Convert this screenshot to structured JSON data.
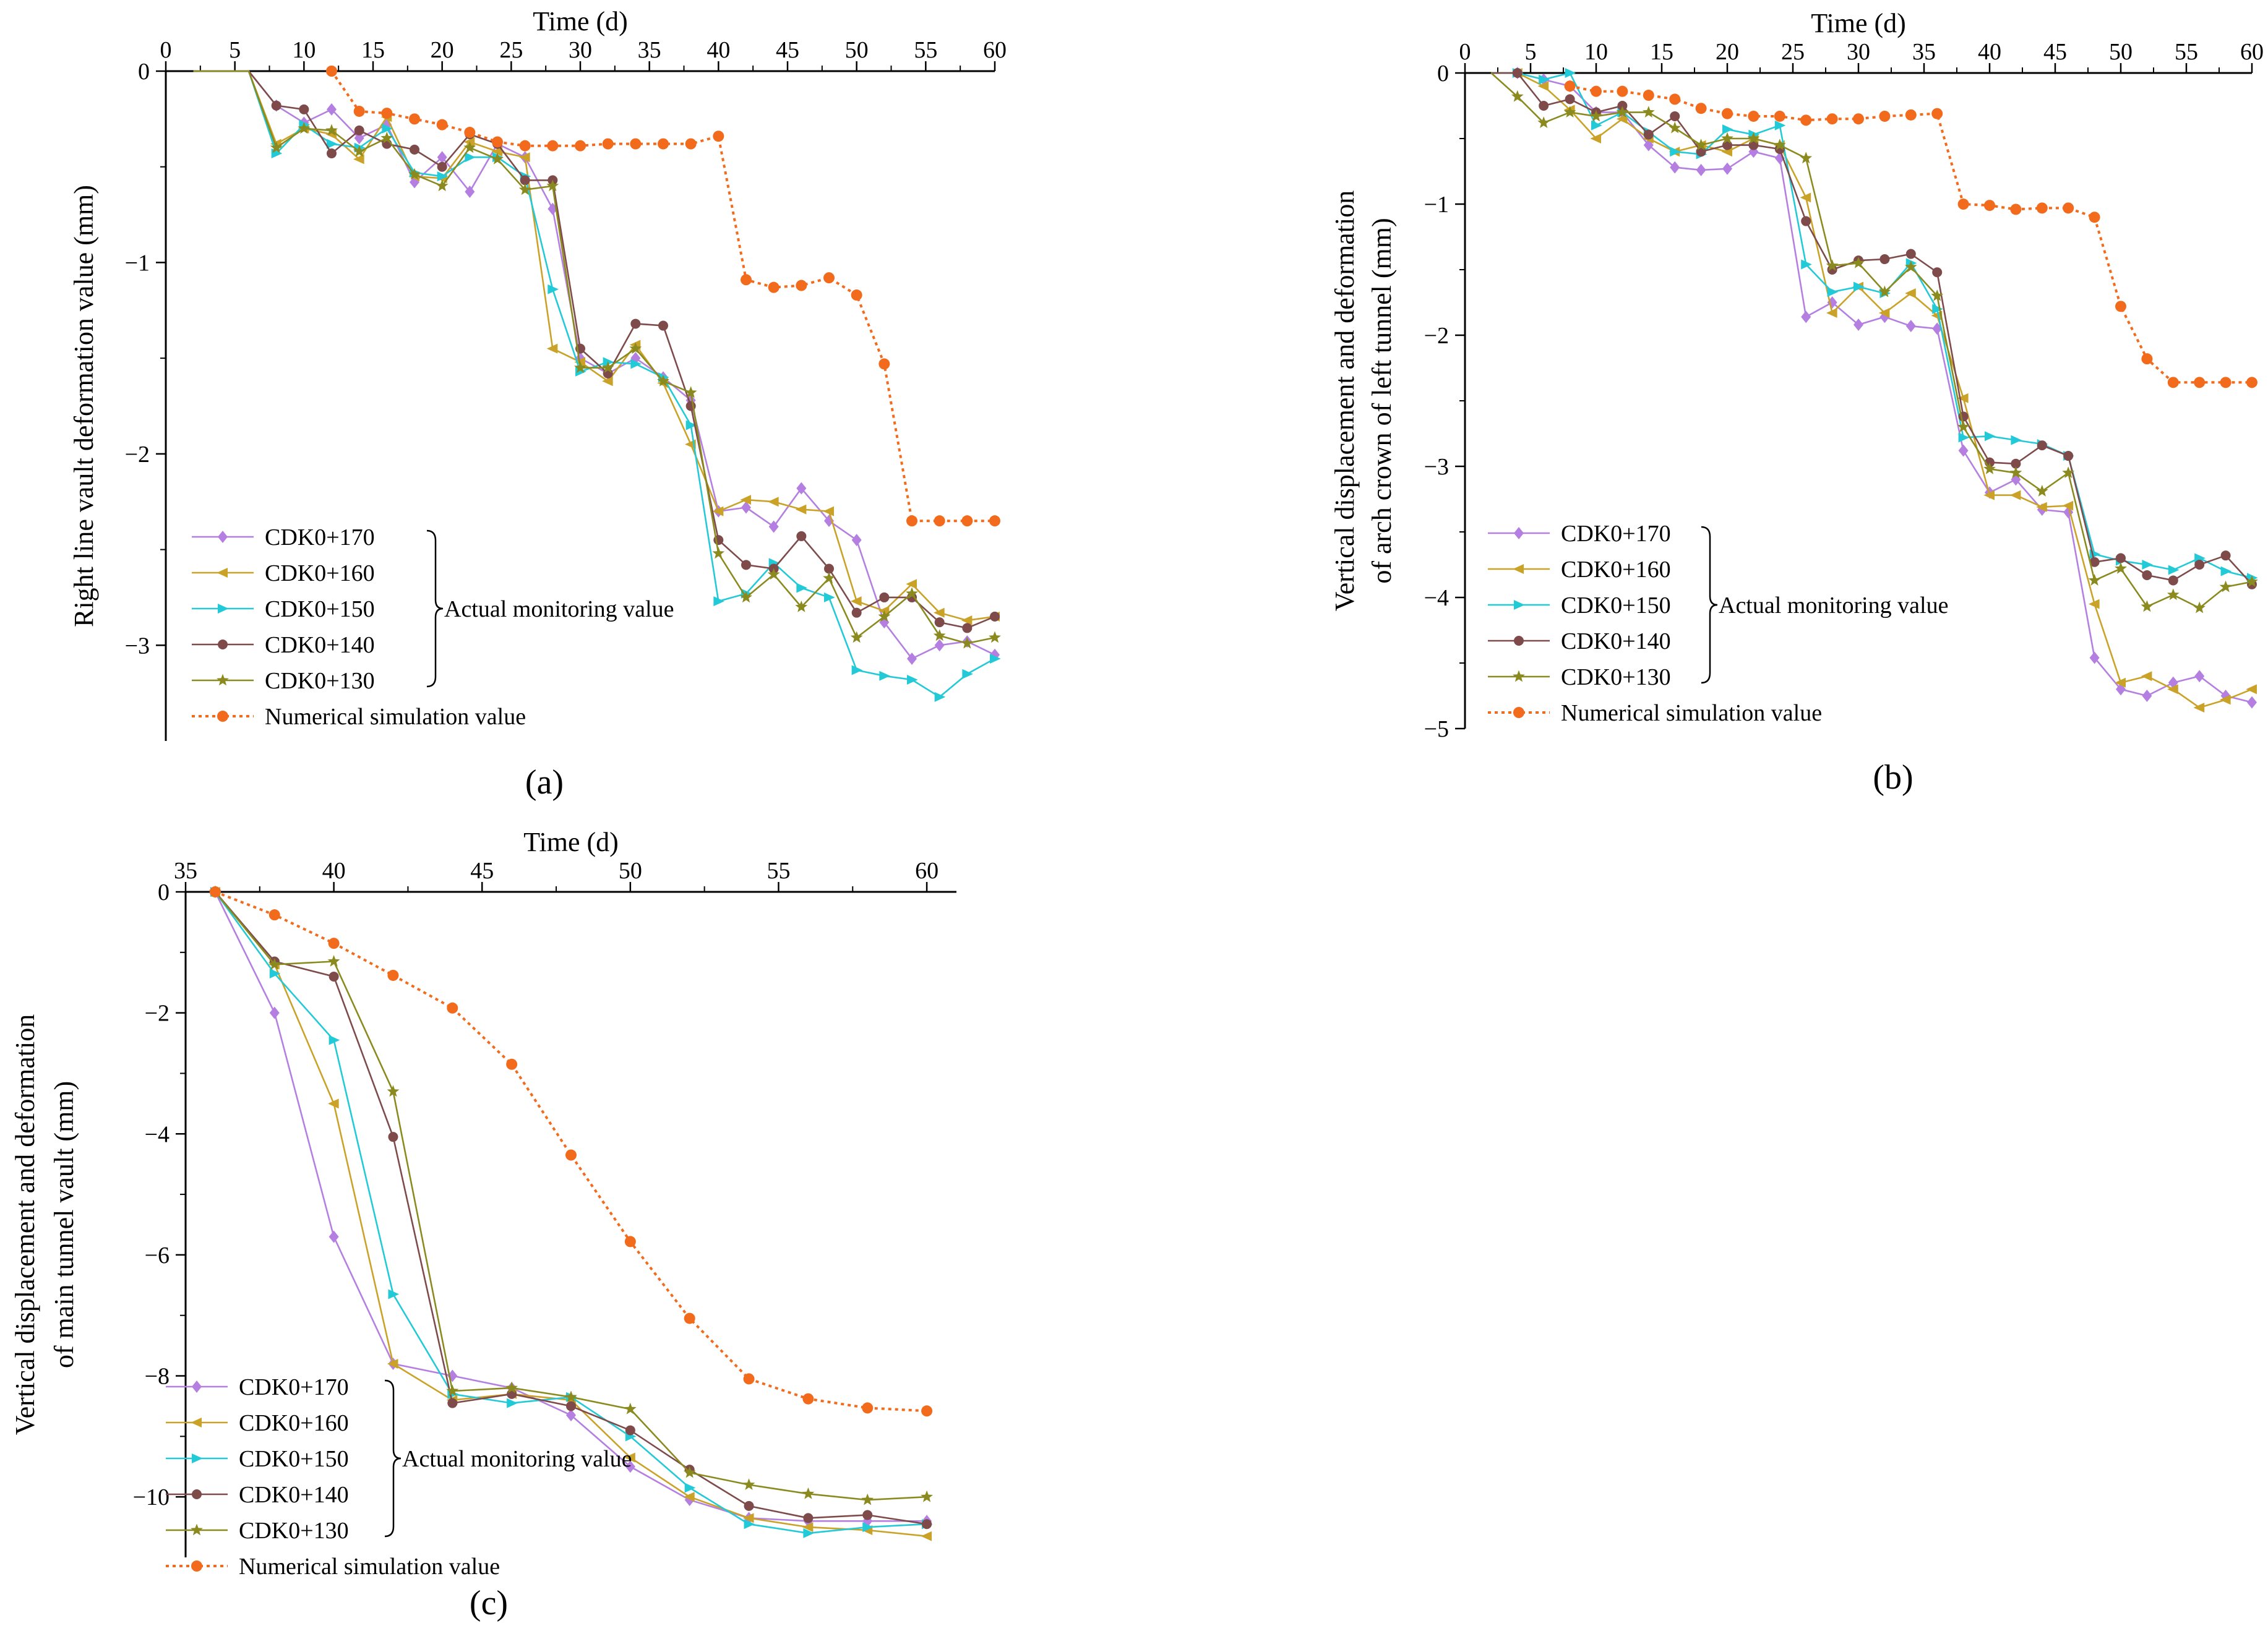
{
  "chart_data": [
    {
      "id": "a",
      "type": "line",
      "panel_label": "(a)",
      "xlabel": "Time (d)",
      "ylabel": "Right line vault deformation value (mm)",
      "xlim": [
        0,
        60
      ],
      "ylim": [
        -3.5,
        0
      ],
      "xticks": [
        0,
        5,
        10,
        15,
        20,
        25,
        30,
        35,
        40,
        45,
        50,
        55,
        60
      ],
      "yticks": [
        0,
        -1,
        -2,
        -3
      ],
      "ytick_labels": [
        "0",
        "−1",
        "−2",
        "−3"
      ],
      "x": [
        8,
        10,
        12,
        14,
        16,
        18,
        20,
        22,
        24,
        26,
        28,
        30,
        32,
        34,
        36,
        38,
        40,
        42,
        44,
        46,
        48,
        50,
        52,
        54,
        56,
        58,
        60
      ],
      "lead_in": [
        [
          2,
          0
        ],
        [
          6,
          0
        ]
      ],
      "series": [
        {
          "name": "CDK0+170",
          "color": "#b47fe0",
          "marker": "diamond",
          "values": [
            -0.18,
            -0.27,
            -0.2,
            -0.35,
            -0.28,
            -0.58,
            -0.45,
            -0.63,
            -0.38,
            -0.45,
            -0.72,
            -1.5,
            -1.58,
            -1.5,
            -1.6,
            -1.72,
            -2.3,
            -2.28,
            -2.38,
            -2.18,
            -2.35,
            -2.45,
            -2.88,
            -3.07,
            -3.0,
            -2.98,
            -3.05
          ]
        },
        {
          "name": "CDK0+160",
          "color": "#c9a227",
          "marker": "triangle-left",
          "values": [
            -0.38,
            -0.3,
            -0.33,
            -0.46,
            -0.24,
            -0.55,
            -0.56,
            -0.37,
            -0.42,
            -0.45,
            -1.45,
            -1.52,
            -1.62,
            -1.43,
            -1.63,
            -1.95,
            -2.3,
            -2.24,
            -2.25,
            -2.29,
            -2.3,
            -2.77,
            -2.82,
            -2.68,
            -2.83,
            -2.87,
            -2.85
          ]
        },
        {
          "name": "CDK0+150",
          "color": "#22c9d6",
          "marker": "triangle-right",
          "values": [
            -0.43,
            -0.28,
            -0.38,
            -0.4,
            -0.3,
            -0.53,
            -0.55,
            -0.45,
            -0.45,
            -0.55,
            -1.14,
            -1.57,
            -1.52,
            -1.53,
            -1.6,
            -1.85,
            -2.77,
            -2.73,
            -2.57,
            -2.7,
            -2.75,
            -3.13,
            -3.16,
            -3.18,
            -3.27,
            -3.15,
            -3.07
          ]
        },
        {
          "name": "CDK0+140",
          "color": "#7e4a4a",
          "marker": "circle",
          "values": [
            -0.18,
            -0.2,
            -0.43,
            -0.31,
            -0.38,
            -0.41,
            -0.5,
            -0.33,
            -0.38,
            -0.57,
            -0.57,
            -1.45,
            -1.58,
            -1.32,
            -1.33,
            -1.75,
            -2.45,
            -2.58,
            -2.6,
            -2.43,
            -2.6,
            -2.83,
            -2.75,
            -2.75,
            -2.88,
            -2.91,
            -2.85
          ]
        },
        {
          "name": "CDK0+130",
          "color": "#8a8a1e",
          "marker": "star",
          "values": [
            -0.4,
            -0.3,
            -0.31,
            -0.42,
            -0.35,
            -0.54,
            -0.6,
            -0.4,
            -0.46,
            -0.62,
            -0.6,
            -1.55,
            -1.55,
            -1.45,
            -1.62,
            -1.68,
            -2.52,
            -2.75,
            -2.63,
            -2.8,
            -2.65,
            -2.96,
            -2.85,
            -2.73,
            -2.95,
            -2.99,
            -2.96
          ]
        }
      ],
      "simulation": {
        "name": "Numerical simulation value",
        "color": "#f26b1d",
        "x": [
          12,
          14,
          16,
          18,
          20,
          22,
          24,
          26,
          28,
          30,
          32,
          34,
          36,
          38,
          40,
          42,
          44,
          46,
          48,
          50,
          52,
          54,
          56,
          58,
          60
        ],
        "values": [
          0,
          -0.21,
          -0.22,
          -0.25,
          -0.28,
          -0.32,
          -0.37,
          -0.39,
          -0.39,
          -0.39,
          -0.38,
          -0.38,
          -0.38,
          -0.38,
          -0.34,
          -1.09,
          -1.13,
          -1.12,
          -1.08,
          -1.17,
          -1.53,
          -2.35,
          -2.35,
          -2.35,
          -2.35
        ]
      },
      "legend_position": "bottom-left",
      "bracket_label": "Actual monitoring value"
    },
    {
      "id": "b",
      "type": "line",
      "panel_label": "(b)",
      "xlabel": "Time (d)",
      "ylabel": "Vertical displacement and deformation of arch crown of left tunnel (mm)",
      "ylabel_lines": [
        "Vertical displacement and deformation",
        "of arch crown of left tunnel (mm)"
      ],
      "xlim": [
        0,
        60
      ],
      "ylim": [
        -5,
        0
      ],
      "xticks": [
        0,
        5,
        10,
        15,
        20,
        25,
        30,
        35,
        40,
        45,
        50,
        55,
        60
      ],
      "yticks": [
        0,
        -1,
        -2,
        -3,
        -4,
        -5
      ],
      "ytick_labels": [
        "0",
        "−1",
        "−2",
        "−3",
        "−4",
        "−5"
      ],
      "x": [
        4,
        6,
        8,
        10,
        12,
        14,
        16,
        18,
        20,
        22,
        24,
        26,
        28,
        30,
        32,
        34,
        36,
        38,
        40,
        42,
        44,
        46,
        48,
        50,
        52,
        54,
        56,
        58,
        60
      ],
      "lead_in": [
        [
          2,
          0
        ]
      ],
      "series": [
        {
          "name": "CDK0+170",
          "color": "#b47fe0",
          "marker": "diamond",
          "values": [
            0,
            -0.05,
            -0.1,
            -0.3,
            -0.3,
            -0.55,
            -0.72,
            -0.74,
            -0.73,
            -0.6,
            -0.65,
            -1.86,
            -1.75,
            -1.92,
            -1.86,
            -1.93,
            -1.95,
            -2.88,
            -3.2,
            -3.1,
            -3.33,
            -3.35,
            -4.46,
            -4.7,
            -4.75,
            -4.65,
            -4.6,
            -4.75,
            -4.8
          ]
        },
        {
          "name": "CDK0+160",
          "color": "#c9a227",
          "marker": "triangle-left",
          "values": [
            0,
            -0.1,
            -0.28,
            -0.5,
            -0.35,
            -0.5,
            -0.6,
            -0.55,
            -0.6,
            -0.5,
            -0.55,
            -0.95,
            -1.83,
            -1.63,
            -1.83,
            -1.68,
            -1.85,
            -2.48,
            -3.22,
            -3.22,
            -3.31,
            -3.3,
            -4.05,
            -4.65,
            -4.6,
            -4.7,
            -4.84,
            -4.78,
            -4.7
          ]
        },
        {
          "name": "CDK0+150",
          "color": "#22c9d6",
          "marker": "triangle-right",
          "values": [
            0,
            -0.05,
            0,
            -0.4,
            -0.3,
            -0.45,
            -0.6,
            -0.62,
            -0.43,
            -0.47,
            -0.4,
            -1.46,
            -1.67,
            -1.63,
            -1.68,
            -1.45,
            -1.8,
            -2.78,
            -2.77,
            -2.8,
            -2.83,
            -2.92,
            -3.67,
            -3.72,
            -3.75,
            -3.79,
            -3.7,
            -3.8,
            -3.85
          ]
        },
        {
          "name": "CDK0+140",
          "color": "#7e4a4a",
          "marker": "circle",
          "values": [
            0,
            -0.25,
            -0.2,
            -0.3,
            -0.25,
            -0.47,
            -0.33,
            -0.6,
            -0.55,
            -0.55,
            -0.58,
            -1.13,
            -1.5,
            -1.43,
            -1.42,
            -1.38,
            -1.52,
            -2.62,
            -2.97,
            -2.98,
            -2.84,
            -2.92,
            -3.73,
            -3.7,
            -3.83,
            -3.87,
            -3.75,
            -3.68,
            -3.9
          ]
        },
        {
          "name": "CDK0+130",
          "color": "#8a8a1e",
          "marker": "star",
          "values": [
            -0.18,
            -0.38,
            -0.3,
            -0.33,
            -0.3,
            -0.3,
            -0.42,
            -0.55,
            -0.5,
            -0.5,
            -0.55,
            -0.65,
            -1.47,
            -1.45,
            -1.67,
            -1.48,
            -1.7,
            -2.7,
            -3.02,
            -3.05,
            -3.19,
            -3.05,
            -3.87,
            -3.78,
            -4.07,
            -3.98,
            -4.08,
            -3.92,
            -3.88
          ]
        }
      ],
      "simulation": {
        "name": "Numerical simulation value",
        "color": "#f26b1d",
        "x": [
          8,
          10,
          12,
          14,
          16,
          18,
          20,
          22,
          24,
          26,
          28,
          30,
          32,
          34,
          36,
          38,
          40,
          42,
          44,
          46,
          48,
          50,
          52,
          54,
          56,
          58,
          60
        ],
        "values": [
          -0.1,
          -0.14,
          -0.14,
          -0.17,
          -0.2,
          -0.27,
          -0.31,
          -0.33,
          -0.33,
          -0.36,
          -0.35,
          -0.35,
          -0.33,
          -0.32,
          -0.31,
          -1.0,
          -1.01,
          -1.04,
          -1.03,
          -1.03,
          -1.1,
          -1.78,
          -2.18,
          -2.36,
          -2.36,
          -2.36,
          -2.36
        ]
      },
      "legend_position": "bottom-left",
      "bracket_label": "Actual monitoring value"
    },
    {
      "id": "c",
      "type": "line",
      "panel_label": "(c)",
      "xlabel": "Time (d)",
      "ylabel": "Vertical displacement and deformation of main tunnel vault (mm)",
      "ylabel_lines": [
        "Vertical displacement and deformation",
        "of main tunnel vault (mm)"
      ],
      "xlim": [
        35,
        61
      ],
      "ylim": [
        -11,
        0
      ],
      "xticks": [
        35,
        40,
        45,
        50,
        55,
        60
      ],
      "yticks": [
        0,
        -2,
        -4,
        -6,
        -8,
        -10
      ],
      "ytick_labels": [
        "0",
        "−2",
        "−4",
        "−6",
        "−8",
        "−10"
      ],
      "x": [
        36,
        38,
        40,
        42,
        44,
        46,
        48,
        50,
        52,
        54,
        56,
        58,
        60
      ],
      "lead_in": [],
      "series": [
        {
          "name": "CDK0+170",
          "color": "#b47fe0",
          "marker": "diamond",
          "values": [
            0,
            -2.0,
            -5.7,
            -7.8,
            -8.0,
            -8.2,
            -8.65,
            -9.5,
            -10.05,
            -10.35,
            -10.4,
            -10.4,
            -10.4
          ]
        },
        {
          "name": "CDK0+160",
          "color": "#c9a227",
          "marker": "triangle-left",
          "values": [
            0,
            -1.2,
            -3.5,
            -7.8,
            -8.4,
            -8.3,
            -8.4,
            -9.35,
            -10.0,
            -10.35,
            -10.5,
            -10.55,
            -10.65
          ]
        },
        {
          "name": "CDK0+150",
          "color": "#22c9d6",
          "marker": "triangle-right",
          "values": [
            0,
            -1.35,
            -2.45,
            -6.65,
            -8.3,
            -8.45,
            -8.35,
            -9.0,
            -9.85,
            -10.45,
            -10.6,
            -10.5,
            -10.45
          ]
        },
        {
          "name": "CDK0+140",
          "color": "#7e4a4a",
          "marker": "circle",
          "values": [
            0,
            -1.15,
            -1.4,
            -4.05,
            -8.45,
            -8.3,
            -8.5,
            -8.9,
            -9.55,
            -10.15,
            -10.35,
            -10.3,
            -10.45
          ]
        },
        {
          "name": "CDK0+130",
          "color": "#8a8a1e",
          "marker": "star",
          "values": [
            0,
            -1.2,
            -1.15,
            -3.3,
            -8.25,
            -8.2,
            -8.35,
            -8.55,
            -9.6,
            -9.8,
            -9.95,
            -10.05,
            -10.0
          ]
        }
      ],
      "simulation": {
        "name": "Numerical simulation value",
        "color": "#f26b1d",
        "x": [
          36,
          38,
          40,
          42,
          44,
          46,
          48,
          50,
          52,
          54,
          56,
          58,
          60
        ],
        "values": [
          0,
          -0.38,
          -0.85,
          -1.38,
          -1.92,
          -2.85,
          -4.35,
          -5.78,
          -7.05,
          -8.05,
          -8.38,
          -8.53,
          -8.58
        ]
      },
      "legend_position": "bottom-left",
      "bracket_label": "Actual monitoring value"
    }
  ]
}
